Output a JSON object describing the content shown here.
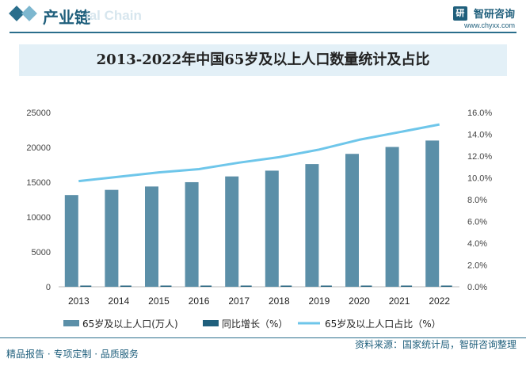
{
  "header": {
    "title": "产业链",
    "watermark": "ial Chain",
    "brand_name": "智研咨询",
    "brand_logo": "研",
    "brand_url": "www.chyxx.com"
  },
  "chart_data": {
    "type": "bar",
    "title": "2013-2022年中国65岁及以上人口数量统计及占比",
    "categories": [
      "2013",
      "2014",
      "2015",
      "2016",
      "2017",
      "2018",
      "2019",
      "2020",
      "2021",
      "2022"
    ],
    "series": [
      {
        "name": "65岁及以上人口(万人)",
        "type": "bar",
        "axis": "left",
        "color": "#5b8fa8",
        "values": [
          13161,
          13902,
          14386,
          15003,
          15831,
          16658,
          17603,
          19064,
          20056,
          20978
        ]
      },
      {
        "name": "同比增长（%）",
        "type": "bar",
        "axis": "right",
        "color": "#1f5f7c",
        "values": [
          0.04,
          0.05,
          0.03,
          0.04,
          0.05,
          0.05,
          0.05,
          0.08,
          0.05,
          0.04
        ]
      },
      {
        "name": "65岁及以上人口占比（%）",
        "type": "line",
        "axis": "right",
        "color": "#6ec6ea",
        "values": [
          9.7,
          10.1,
          10.5,
          10.8,
          11.4,
          11.9,
          12.6,
          13.5,
          14.2,
          14.9
        ]
      }
    ],
    "y_left": {
      "ylim": [
        0,
        25000
      ],
      "ticks": [
        "0",
        "5000",
        "10000",
        "15000",
        "20000",
        "25000"
      ]
    },
    "y_right": {
      "ylim": [
        0,
        16
      ],
      "ticks": [
        "0.0%",
        "2.0%",
        "4.0%",
        "6.0%",
        "8.0%",
        "10.0%",
        "12.0%",
        "14.0%",
        "16.0%"
      ]
    },
    "grid": false,
    "legend": "bottom"
  },
  "footer": {
    "left": "精品报告 · 专项定制 · 品质服务",
    "right": "资料来源：国家统计局，智研咨询整理"
  }
}
